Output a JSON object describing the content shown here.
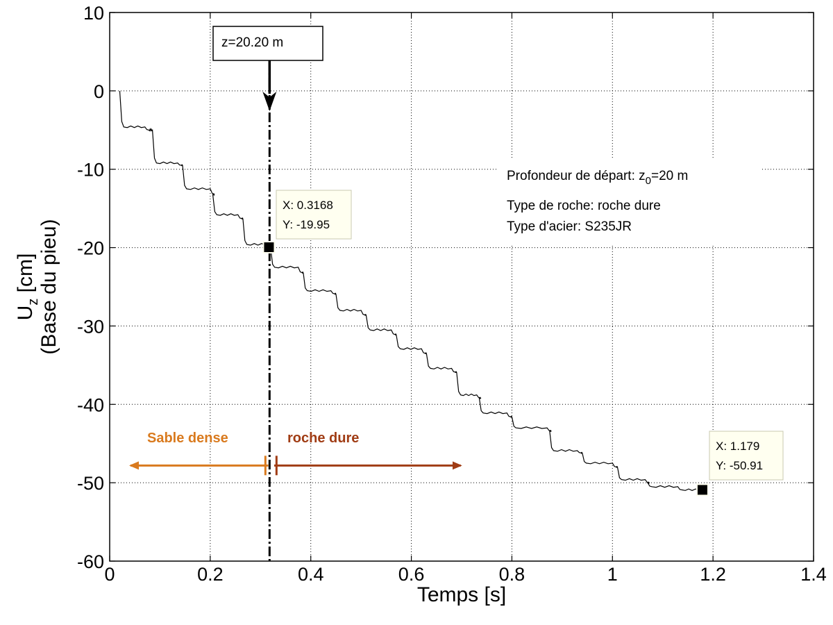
{
  "chart_data": {
    "type": "line",
    "xlabel": "Temps [s]",
    "ylabel_main": "U",
    "ylabel_sub": "z",
    "ylabel_unit": " [cm]",
    "ylabel_line2": "(Base du pieu)",
    "xlim": [
      0,
      1.4
    ],
    "ylim": [
      -60,
      10
    ],
    "grid": true,
    "x_ticks": [
      0,
      0.2,
      0.4,
      0.6,
      0.8,
      1.0,
      1.2,
      1.4
    ],
    "x_tick_labels": [
      "0",
      "0.2",
      "0.4",
      "0.6",
      "0.8",
      "1",
      "1.2",
      "1.4"
    ],
    "y_ticks": [
      10,
      0,
      -10,
      -20,
      -30,
      -40,
      -50,
      -60
    ],
    "y_tick_labels": [
      "10",
      "0",
      "-10",
      "-20",
      "-30",
      "-40",
      "-50",
      "-60"
    ],
    "series": [
      {
        "name": "Uz base du pieu",
        "color": "#000000",
        "steps": [
          [
            0.02,
            0.0,
            -4.6
          ],
          [
            0.07,
            -4.6,
            -5.0
          ],
          [
            0.085,
            -5.0,
            -9.2
          ],
          [
            0.135,
            -9.2,
            -9.5
          ],
          [
            0.145,
            -9.5,
            -12.5
          ],
          [
            0.2,
            -12.5,
            -13.2
          ],
          [
            0.205,
            -13.2,
            -15.8
          ],
          [
            0.255,
            -15.8,
            -16.3
          ],
          [
            0.265,
            -16.3,
            -19.6
          ],
          [
            0.3168,
            -19.6,
            -20.0
          ],
          [
            0.32,
            -20.0,
            -22.5
          ],
          [
            0.375,
            -22.5,
            -23.2
          ],
          [
            0.385,
            -23.2,
            -25.5
          ],
          [
            0.44,
            -25.5,
            -25.9
          ],
          [
            0.45,
            -25.9,
            -28.0
          ],
          [
            0.5,
            -28.0,
            -28.6
          ],
          [
            0.51,
            -28.6,
            -30.5
          ],
          [
            0.56,
            -30.5,
            -31.1
          ],
          [
            0.57,
            -31.1,
            -32.9
          ],
          [
            0.62,
            -32.9,
            -33.5
          ],
          [
            0.63,
            -33.5,
            -35.4
          ],
          [
            0.68,
            -35.4,
            -35.9
          ],
          [
            0.69,
            -35.9,
            -38.8
          ],
          [
            0.73,
            -38.8,
            -39.2
          ],
          [
            0.735,
            -39.2,
            -41.1
          ],
          [
            0.79,
            -41.1,
            -41.6
          ],
          [
            0.8,
            -41.6,
            -43.0
          ],
          [
            0.87,
            -43.0,
            -43.4
          ],
          [
            0.875,
            -43.4,
            -45.9
          ],
          [
            0.93,
            -45.9,
            -46.2
          ],
          [
            0.94,
            -46.2,
            -47.5
          ],
          [
            1.0,
            -47.5,
            -48.0
          ],
          [
            1.01,
            -48.0,
            -49.6
          ],
          [
            1.065,
            -49.6,
            -50.0
          ],
          [
            1.07,
            -50.0,
            -50.5
          ],
          [
            1.13,
            -50.5,
            -50.91
          ],
          [
            1.179,
            -50.91,
            -50.91
          ]
        ]
      }
    ],
    "datatips": [
      {
        "x": 0.3168,
        "y": -19.95,
        "line1": "X: 0.3168",
        "line2": "Y: -19.95"
      },
      {
        "x": 1.179,
        "y": -50.91,
        "line1": "X: 1.179",
        "line2": "Y: -50.91"
      }
    ],
    "marker_line": {
      "x": 0.318,
      "label": "z=20.20 m"
    },
    "info_box": {
      "line1_prefix": "Profondeur de départ: z",
      "line1_sub": "0",
      "line1_suffix": "=20 m",
      "line2": "Type de roche: roche dure",
      "line3": "Type d'acier: S235JR"
    },
    "zones": [
      {
        "label": "Sable dense",
        "color": "#d97a1e",
        "direction": "left",
        "x_from": 0.31,
        "x_to": 0.0,
        "y": -47.8
      },
      {
        "label": "roche dure",
        "color": "#a03c14",
        "direction": "right",
        "x_from": 0.33,
        "x_to": 0.69,
        "y": -47.8
      }
    ]
  }
}
